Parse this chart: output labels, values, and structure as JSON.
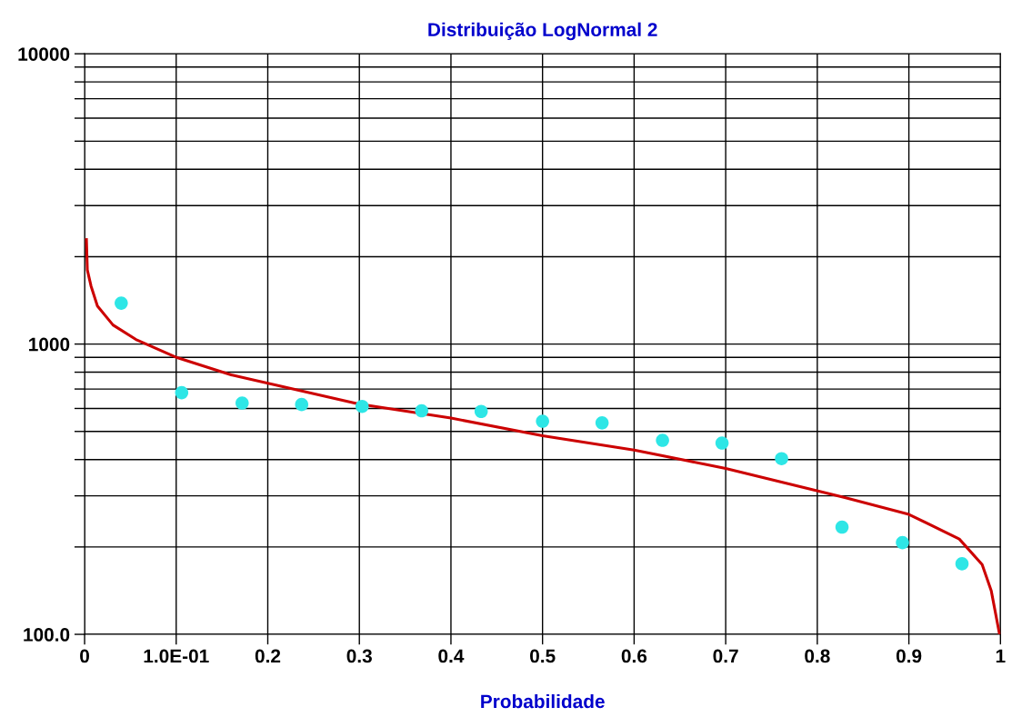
{
  "chart_data": {
    "type": "scatter",
    "title": "Distribuição LogNormal 2",
    "xlabel": "Probabilidade",
    "xlim": [
      0,
      1
    ],
    "xticks": [
      0,
      {
        "value": 0.1,
        "label": "1.0E-01"
      },
      0.2,
      0.3,
      0.4,
      0.5,
      0.6,
      0.7,
      0.8,
      0.9,
      1
    ],
    "ylim": [
      100,
      10000
    ],
    "yticks": [
      {
        "value": 100,
        "label": "100.0"
      },
      1000,
      10000
    ],
    "log": true,
    "grid": true,
    "legend": false,
    "series": [
      {
        "type": "line",
        "color": "#cc0000",
        "x": [
          0.002,
          0.003,
          0.007,
          0.014,
          0.031,
          0.056,
          0.101,
          0.16,
          0.299,
          0.4,
          0.5,
          0.6,
          0.7,
          0.83,
          0.9,
          0.955,
          0.98,
          0.99,
          0.999
        ],
        "values": [
          2290,
          1800,
          1585,
          1353,
          1163,
          1037,
          898,
          783,
          622,
          556,
          483,
          431,
          373,
          296,
          259,
          213,
          174,
          141,
          100
        ],
        "marker": "none",
        "line_style": "solid"
      },
      {
        "color": "#2ee6e6",
        "marker": "circle",
        "x": [
          0.04,
          0.106,
          0.172,
          0.237,
          0.303,
          0.368,
          0.433,
          0.5,
          0.565,
          0.631,
          0.696,
          0.761,
          0.827,
          0.893,
          0.958
        ],
        "values": [
          1383,
          680,
          626,
          619,
          610,
          589,
          586,
          542,
          535,
          466,
          456,
          403,
          234,
          207,
          175
        ]
      }
    ]
  }
}
